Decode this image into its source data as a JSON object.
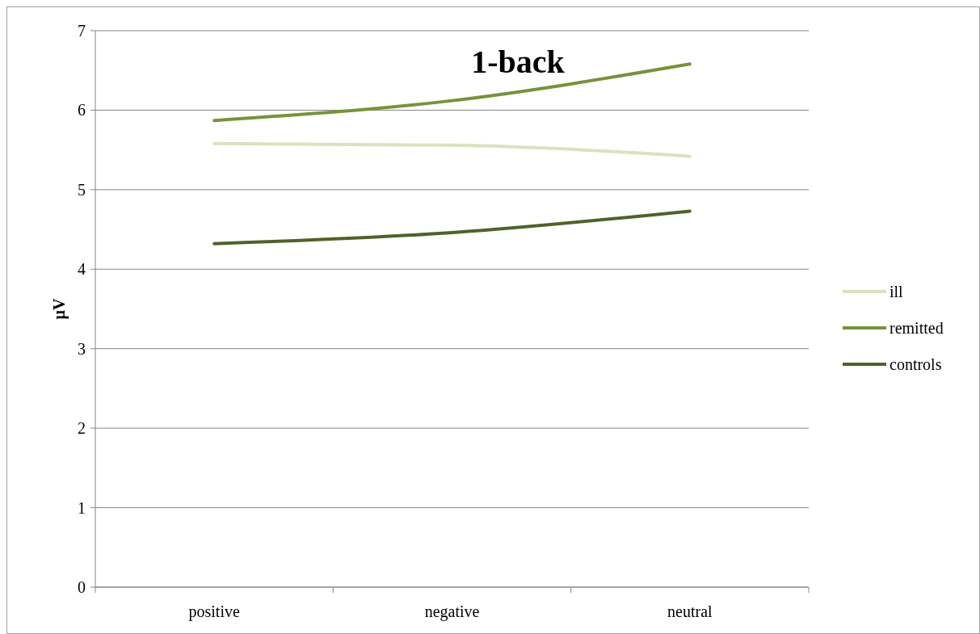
{
  "chart_data": {
    "type": "line",
    "title": "1-back",
    "ylabel": "µV",
    "categories": [
      "positive",
      "negative",
      "neutral"
    ],
    "series": [
      {
        "name": "ill",
        "color": "#d7e4bd",
        "values": [
          5.58,
          5.56,
          5.42
        ]
      },
      {
        "name": "remitted",
        "color": "#77933c",
        "values": [
          5.87,
          6.12,
          6.58
        ]
      },
      {
        "name": "controls",
        "color": "#4f6228",
        "values": [
          4.32,
          4.46,
          4.73
        ]
      }
    ],
    "ylim": [
      0,
      7
    ],
    "yticks": [
      0,
      1,
      2,
      3,
      4,
      5,
      6,
      7
    ],
    "grid": "y",
    "legend": "right",
    "marker": "none",
    "line_style": "solid"
  }
}
